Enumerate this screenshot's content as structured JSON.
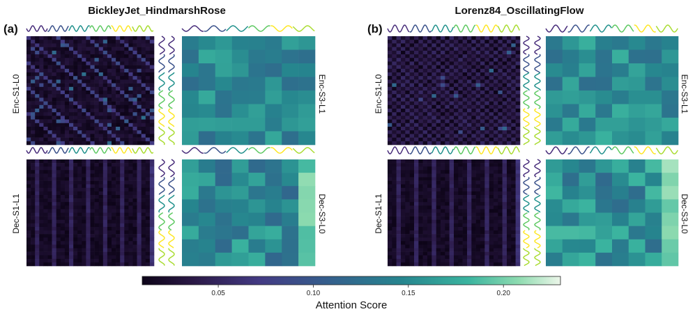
{
  "chart_data": {
    "type": "heatmap",
    "colormap": "viridis",
    "colorbar": {
      "label": "Attention Score",
      "range": [
        0.01,
        0.23
      ],
      "ticks": [
        0.05,
        0.1,
        0.15,
        0.2
      ],
      "tick_labels": [
        "0.05",
        "0.10",
        "0.15",
        "0.20"
      ]
    },
    "panels": [
      {
        "id": "a",
        "panel_label": "(a)",
        "title": "BickleyJet_HindmarshRose",
        "wave_colors": [
          "#472c7a",
          "#3b528b",
          "#21918c",
          "#5ec962",
          "#fde725",
          "#aadc32"
        ],
        "heatmaps": [
          {
            "label": "Enc-S1-L0",
            "rows": 30,
            "cols": 30,
            "pattern": "diagonal-stripes",
            "range": [
              0.01,
              0.13
            ]
          },
          {
            "label": "Enc-S3-L1",
            "rows": 8,
            "cols": 8,
            "pattern": "mid-uniform",
            "range": [
              0.09,
              0.19
            ]
          },
          {
            "label": "Dec-S1-L1",
            "rows": 30,
            "cols": 30,
            "pattern": "column-stripes",
            "range": [
              0.01,
              0.11
            ]
          },
          {
            "label": "Dec-S3-L0",
            "rows": 8,
            "cols": 8,
            "pattern": "mid-uniform-lastcol-high",
            "range": [
              0.09,
              0.21
            ]
          }
        ]
      },
      {
        "id": "b",
        "panel_label": "(b)",
        "title": "Lorenz84_OscillatingFlow",
        "wave_colors": [
          "#472c7a",
          "#3b528b",
          "#21918c",
          "#5ec962",
          "#fde725",
          "#aadc32"
        ],
        "heatmaps": [
          {
            "label": "Enc-S1-L0",
            "rows": 30,
            "cols": 30,
            "pattern": "checkerboard",
            "range": [
              0.01,
              0.12
            ]
          },
          {
            "label": "Enc-S3-L1",
            "rows": 8,
            "cols": 8,
            "pattern": "mid-uniform",
            "range": [
              0.09,
              0.2
            ]
          },
          {
            "label": "Dec-S1-L1",
            "rows": 30,
            "cols": 30,
            "pattern": "column-stripes",
            "range": [
              0.01,
              0.11
            ]
          },
          {
            "label": "Dec-S3-L0",
            "rows": 8,
            "cols": 8,
            "pattern": "mid-uniform-lastcol-high",
            "range": [
              0.09,
              0.22
            ]
          }
        ]
      }
    ]
  }
}
